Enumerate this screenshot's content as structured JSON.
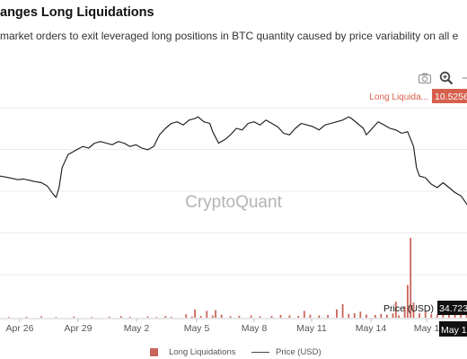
{
  "header": {
    "title": "anges Long Liquidations",
    "subtitle": "market orders to exit leveraged long positions in BTC quantity caused by price variability on all e"
  },
  "toolbar": {
    "icons": [
      "camera-icon",
      "zoom-icon",
      "pan-icon"
    ]
  },
  "chart_data": {
    "type": "bar",
    "watermark": "CryptoQuant",
    "x_ticks": [
      "Apr 26",
      "Apr 29",
      "May 2",
      "May 5",
      "May 8",
      "May 11",
      "May 14",
      "May 1"
    ],
    "hover_date": "May 1",
    "legend": [
      "Long Liquidations",
      "Price (USD)"
    ],
    "legend_position": "bottom-center",
    "grid": true,
    "colors": {
      "bar": "#c9645a",
      "line": "#222222",
      "tag_long": "#d6604d",
      "tag_price": "#111111"
    },
    "hover_labels": [
      {
        "label": "Long Liquida...",
        "value": "10.5256"
      },
      {
        "label": "Price (USD)",
        "value": "34.723"
      }
    ],
    "series": [
      {
        "name": "Price (USD)",
        "type": "line",
        "y_range": [
          31000,
          37000
        ],
        "points": [
          [
            0,
            34650
          ],
          [
            2,
            34620
          ],
          [
            4,
            34580
          ],
          [
            6,
            34540
          ],
          [
            8,
            34560
          ],
          [
            10,
            34520
          ],
          [
            12,
            34480
          ],
          [
            14,
            34450
          ],
          [
            16,
            34350
          ],
          [
            18,
            34100
          ],
          [
            19,
            34000
          ],
          [
            20,
            34300
          ],
          [
            21,
            34900
          ],
          [
            22,
            35100
          ],
          [
            23,
            35300
          ],
          [
            24,
            35350
          ],
          [
            26,
            35450
          ],
          [
            28,
            35550
          ],
          [
            30,
            35500
          ],
          [
            32,
            35650
          ],
          [
            34,
            35700
          ],
          [
            36,
            35650
          ],
          [
            38,
            35600
          ],
          [
            40,
            35700
          ],
          [
            42,
            35650
          ],
          [
            44,
            35550
          ],
          [
            46,
            35600
          ],
          [
            48,
            35500
          ],
          [
            50,
            35450
          ],
          [
            52,
            35550
          ],
          [
            54,
            35900
          ],
          [
            56,
            36100
          ],
          [
            58,
            36250
          ],
          [
            60,
            36300
          ],
          [
            62,
            36200
          ],
          [
            64,
            36350
          ],
          [
            66,
            36400
          ],
          [
            67,
            36450
          ],
          [
            69,
            36300
          ],
          [
            71,
            36250
          ],
          [
            72,
            36000
          ],
          [
            74,
            35650
          ],
          [
            76,
            35750
          ],
          [
            78,
            35900
          ],
          [
            80,
            36100
          ],
          [
            82,
            36050
          ],
          [
            84,
            36250
          ],
          [
            86,
            36300
          ],
          [
            88,
            36200
          ],
          [
            90,
            36350
          ],
          [
            92,
            36250
          ],
          [
            94,
            36150
          ],
          [
            96,
            35950
          ],
          [
            98,
            35900
          ],
          [
            100,
            36100
          ],
          [
            102,
            36250
          ],
          [
            104,
            36200
          ],
          [
            106,
            36150
          ],
          [
            108,
            36050
          ],
          [
            110,
            36200
          ],
          [
            112,
            36250
          ],
          [
            114,
            36300
          ],
          [
            116,
            36350
          ],
          [
            118,
            36450
          ],
          [
            119,
            36400
          ],
          [
            121,
            36250
          ],
          [
            123,
            36100
          ],
          [
            124,
            35900
          ],
          [
            126,
            36100
          ],
          [
            128,
            36300
          ],
          [
            130,
            36200
          ],
          [
            132,
            36100
          ],
          [
            134,
            36050
          ],
          [
            136,
            35950
          ],
          [
            138,
            36000
          ],
          [
            140,
            35550
          ],
          [
            141,
            34900
          ],
          [
            142,
            34650
          ],
          [
            144,
            34600
          ],
          [
            146,
            34400
          ],
          [
            148,
            34300
          ],
          [
            150,
            34450
          ],
          [
            152,
            34300
          ],
          [
            154,
            34150
          ],
          [
            156,
            34050
          ],
          [
            158,
            33800
          ],
          [
            160,
            33550
          ],
          [
            162,
            33350
          ],
          [
            163,
            33200
          ],
          [
            164,
            33250
          ],
          [
            165,
            33150
          ],
          [
            166,
            32650
          ],
          [
            167,
            32900
          ],
          [
            168,
            33050
          ]
        ]
      },
      {
        "name": "Long Liquidations",
        "type": "bar",
        "y_range": [
          0,
          10.5256
        ],
        "max_value": 10.5256,
        "bars": [
          [
            3,
            0.1
          ],
          [
            9,
            0.12
          ],
          [
            14,
            0.18
          ],
          [
            19,
            0.1
          ],
          [
            25,
            0.15
          ],
          [
            31,
            0.09
          ],
          [
            37,
            0.14
          ],
          [
            41,
            0.2
          ],
          [
            44,
            0.12
          ],
          [
            50,
            0.16
          ],
          [
            53,
            0.1
          ],
          [
            56,
            0.22
          ],
          [
            58,
            0.12
          ],
          [
            63,
            0.45
          ],
          [
            65,
            0.15
          ],
          [
            66,
            1.1
          ],
          [
            68,
            0.22
          ],
          [
            70,
            0.9
          ],
          [
            72,
            0.3
          ],
          [
            73,
            1.0
          ],
          [
            75,
            0.4
          ],
          [
            78,
            0.2
          ],
          [
            81,
            0.25
          ],
          [
            85,
            0.3
          ],
          [
            88,
            0.18
          ],
          [
            92,
            0.22
          ],
          [
            95,
            0.35
          ],
          [
            98,
            0.3
          ],
          [
            101,
            0.25
          ],
          [
            103,
            0.9
          ],
          [
            105,
            0.4
          ],
          [
            108,
            0.3
          ],
          [
            111,
            0.35
          ],
          [
            114,
            1.1
          ],
          [
            116,
            1.8
          ],
          [
            118,
            0.5
          ],
          [
            120,
            0.6
          ],
          [
            122,
            0.8
          ],
          [
            124,
            0.4
          ],
          [
            127,
            0.35
          ],
          [
            129,
            0.5
          ],
          [
            131,
            0.4
          ],
          [
            133,
            0.55
          ],
          [
            134,
            2.1
          ],
          [
            135,
            0.3
          ],
          [
            137,
            1.5
          ],
          [
            138,
            4.3
          ],
          [
            139,
            10.5256
          ],
          [
            140,
            2.0
          ],
          [
            142,
            0.6
          ],
          [
            144,
            0.9
          ],
          [
            146,
            0.5
          ],
          [
            148,
            0.4
          ],
          [
            150,
            0.7
          ],
          [
            152,
            1.0
          ],
          [
            154,
            0.6
          ],
          [
            156,
            0.5
          ],
          [
            158,
            0.8
          ],
          [
            160,
            1.2
          ],
          [
            161,
            2.4
          ],
          [
            163,
            0.9
          ],
          [
            165,
            0.6
          ],
          [
            167,
            0.7
          ]
        ]
      }
    ]
  }
}
